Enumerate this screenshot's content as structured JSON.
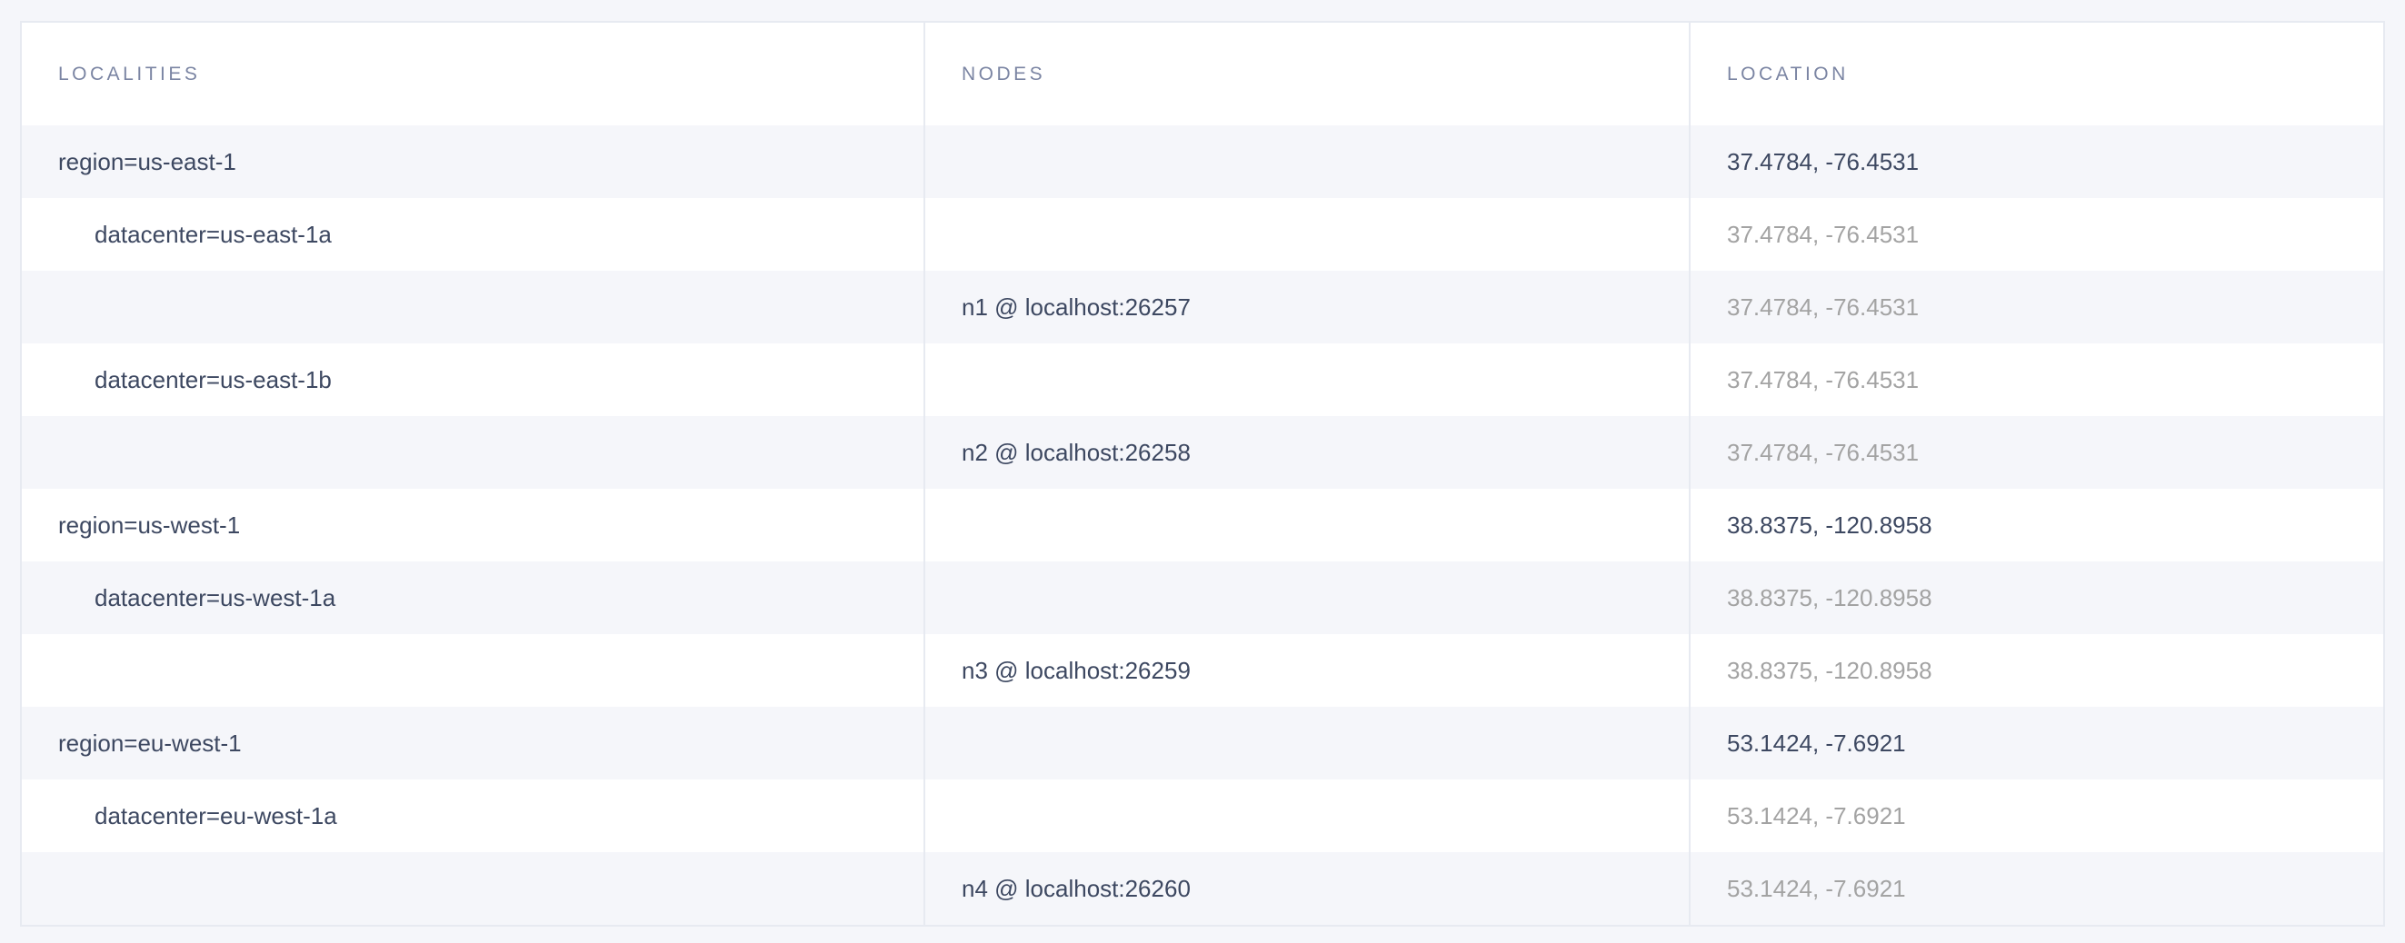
{
  "columns": {
    "localities": "LOCALITIES",
    "nodes": "NODES",
    "location": "LOCATION"
  },
  "rows": [
    {
      "locality": "region=us-east-1",
      "node": "",
      "location": "37.4784, -76.4531",
      "level": "region"
    },
    {
      "locality": "datacenter=us-east-1a",
      "node": "",
      "location": "37.4784, -76.4531",
      "level": "datacenter"
    },
    {
      "locality": "",
      "node": "n1 @ localhost:26257",
      "location": "37.4784, -76.4531",
      "level": "node"
    },
    {
      "locality": "datacenter=us-east-1b",
      "node": "",
      "location": "37.4784, -76.4531",
      "level": "datacenter"
    },
    {
      "locality": "",
      "node": "n2 @ localhost:26258",
      "location": "37.4784, -76.4531",
      "level": "node"
    },
    {
      "locality": "region=us-west-1",
      "node": "",
      "location": "38.8375, -120.8958",
      "level": "region"
    },
    {
      "locality": "datacenter=us-west-1a",
      "node": "",
      "location": "38.8375, -120.8958",
      "level": "datacenter"
    },
    {
      "locality": "",
      "node": "n3 @ localhost:26259",
      "location": "38.8375, -120.8958",
      "level": "node"
    },
    {
      "locality": "region=eu-west-1",
      "node": "",
      "location": "53.1424, -7.6921",
      "level": "region"
    },
    {
      "locality": "datacenter=eu-west-1a",
      "node": "",
      "location": "53.1424, -7.6921",
      "level": "datacenter"
    },
    {
      "locality": "",
      "node": "n4 @ localhost:26260",
      "location": "53.1424, -7.6921",
      "level": "node"
    }
  ]
}
